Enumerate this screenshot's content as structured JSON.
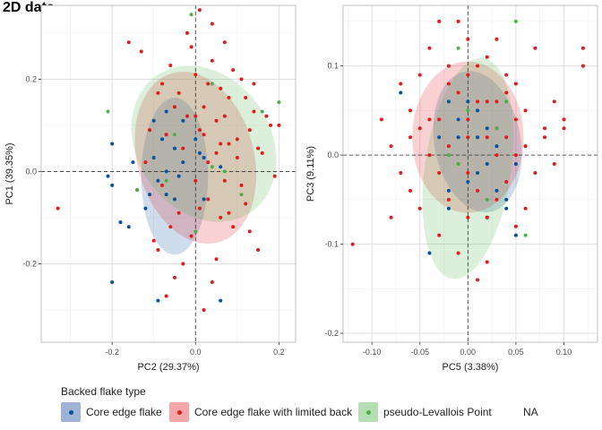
{
  "figure": {
    "title": "2D data",
    "legend": {
      "title": "Backed flake type",
      "position": "bottom",
      "items": [
        {
          "label": "Core edge flake",
          "color": "#08519c",
          "fill": "#9fb4d4"
        },
        {
          "label": "Core edge flake with limited back",
          "color": "#e31a1c",
          "fill": "#f4a6a8"
        },
        {
          "label": "pseudo-Levallois Point",
          "color": "#4daf4a",
          "fill": "#b6deb4"
        },
        {
          "label": "NA",
          "color": "",
          "fill": ""
        }
      ]
    }
  },
  "chart_data": [
    {
      "type": "scatter",
      "title": "",
      "xlabel": "PC2 (29.37%)",
      "ylabel": "PC1 (39.35%)",
      "xlim": [
        -0.37,
        0.24
      ],
      "ylim": [
        -0.37,
        0.36
      ],
      "x_ticks": [
        -0.2,
        0.0,
        0.2
      ],
      "x_tick_labels": [
        "-0.2",
        "0.0",
        "0.2"
      ],
      "y_ticks": [
        -0.2,
        0.0,
        0.2
      ],
      "y_tick_labels": [
        "-0.2",
        "0.0",
        "0.2"
      ],
      "grid": true,
      "reference_lines": {
        "x": 0,
        "y": 0
      },
      "ellipses": [
        {
          "group": 0,
          "cx": -0.05,
          "cy": -0.01,
          "rx": 0.08,
          "ry": 0.17,
          "angle": 0
        },
        {
          "group": 1,
          "cx": 0.0,
          "cy": 0.03,
          "rx": 0.14,
          "ry": 0.19,
          "angle": -15
        },
        {
          "group": 2,
          "cx": 0.02,
          "cy": 0.06,
          "rx": 0.16,
          "ry": 0.18,
          "angle": -35
        }
      ],
      "series": [
        {
          "name": "Core edge flake",
          "points": [
            [
              -0.2,
              -0.24
            ],
            [
              -0.09,
              -0.28
            ],
            [
              0.06,
              -0.28
            ],
            [
              -0.2,
              0.06
            ],
            [
              -0.21,
              -0.01
            ],
            [
              -0.07,
              0.13
            ],
            [
              -0.03,
              0.11
            ],
            [
              -0.1,
              0.03
            ],
            [
              -0.05,
              0.05
            ],
            [
              -0.15,
              0.02
            ],
            [
              -0.07,
              -0.05
            ],
            [
              -0.05,
              -0.06
            ],
            [
              -0.03,
              0.02
            ],
            [
              -0.12,
              -0.08
            ],
            [
              -0.2,
              -0.03
            ],
            [
              -0.16,
              -0.12
            ],
            [
              -0.09,
              -0.02
            ],
            [
              0.0,
              0.07
            ],
            [
              -0.07,
              0.0
            ],
            [
              -0.1,
              0.11
            ],
            [
              0.01,
              0.04
            ],
            [
              0.02,
              -0.06
            ],
            [
              -0.18,
              -0.11
            ],
            [
              -0.04,
              -0.01
            ],
            [
              0.02,
              0.03
            ],
            [
              -0.08,
              0.07
            ],
            [
              0.06,
              0.01
            ],
            [
              -0.11,
              -0.05
            ]
          ]
        },
        {
          "name": "Core edge flake with limited back",
          "points": [
            [
              -0.33,
              -0.08
            ],
            [
              -0.16,
              0.28
            ],
            [
              -0.13,
              0.26
            ],
            [
              -0.11,
              0.09
            ],
            [
              -0.09,
              0.17
            ],
            [
              -0.08,
              -0.03
            ],
            [
              -0.07,
              0.08
            ],
            [
              -0.06,
              0.23
            ],
            [
              -0.05,
              0.14
            ],
            [
              -0.04,
              -0.09
            ],
            [
              -0.03,
              0.05
            ],
            [
              -0.02,
              0.12
            ],
            [
              -0.01,
              -0.14
            ],
            [
              0.0,
              0.21
            ],
            [
              0.0,
              -0.02
            ],
            [
              0.01,
              0.09
            ],
            [
              0.02,
              0.14
            ],
            [
              0.03,
              -0.06
            ],
            [
              0.03,
              0.02
            ],
            [
              0.04,
              0.24
            ],
            [
              0.05,
              0.11
            ],
            [
              0.05,
              -0.19
            ],
            [
              0.06,
              0.06
            ],
            [
              0.07,
              -0.02
            ],
            [
              0.08,
              0.16
            ],
            [
              0.09,
              -0.12
            ],
            [
              0.1,
              0.03
            ],
            [
              0.11,
              0.2
            ],
            [
              0.12,
              -0.07
            ],
            [
              0.13,
              0.09
            ],
            [
              0.14,
              0.13
            ],
            [
              0.15,
              -0.17
            ],
            [
              0.16,
              0.04
            ],
            [
              0.18,
              0.1
            ],
            [
              -0.1,
              -0.15
            ],
            [
              -0.12,
              0.02
            ],
            [
              -0.05,
              -0.23
            ],
            [
              0.02,
              -0.3
            ],
            [
              0.04,
              -0.24
            ],
            [
              -0.02,
              0.3
            ],
            [
              0.01,
              0.35
            ],
            [
              0.06,
              0.18
            ],
            [
              0.07,
              0.28
            ],
            [
              -0.08,
              0.19
            ],
            [
              0.08,
              -0.09
            ],
            [
              0.1,
              0.07
            ],
            [
              0.12,
              0.16
            ],
            [
              0.17,
              0.12
            ],
            [
              -0.06,
              -0.12
            ],
            [
              0.0,
              0.12
            ],
            [
              0.03,
              0.19
            ],
            [
              -0.03,
              -0.2
            ],
            [
              0.05,
              0.04
            ],
            [
              0.09,
              0.22
            ],
            [
              0.11,
              -0.03
            ],
            [
              0.13,
              -0.13
            ],
            [
              0.14,
              0.19
            ],
            [
              -0.01,
              0.27
            ],
            [
              0.04,
              0.32
            ],
            [
              0.06,
              -0.1
            ],
            [
              -0.14,
              -0.04
            ],
            [
              0.15,
              0.05
            ],
            [
              0.19,
              -0.01
            ],
            [
              -0.09,
              -0.17
            ],
            [
              0.02,
              0.08
            ],
            [
              -0.04,
              0.17
            ],
            [
              0.07,
              0.12
            ],
            [
              0.01,
              -0.08
            ],
            [
              0.08,
              0.06
            ],
            [
              -0.07,
              -0.27
            ],
            [
              0.2,
              0.1
            ]
          ]
        },
        {
          "name": "pseudo-Levallois Point",
          "points": [
            [
              -0.21,
              0.13
            ],
            [
              -0.01,
              0.34
            ],
            [
              0.04,
              0.19
            ],
            [
              0.16,
              0.13
            ],
            [
              0.2,
              0.15
            ],
            [
              0.07,
              0.0
            ],
            [
              -0.05,
              0.08
            ],
            [
              0.11,
              -0.05
            ],
            [
              -0.07,
              -0.02
            ],
            [
              0.0,
              -0.13
            ],
            [
              0.04,
              0.01
            ],
            [
              -0.14,
              -0.04
            ]
          ]
        }
      ]
    },
    {
      "type": "scatter",
      "title": "",
      "xlabel": "PC5 (3.38%)",
      "ylabel": "PC3 (9.11%)",
      "xlim": [
        -0.13,
        0.135
      ],
      "ylim": [
        -0.21,
        0.168
      ],
      "x_ticks": [
        -0.1,
        -0.05,
        0.0,
        0.05,
        0.1
      ],
      "x_tick_labels": [
        "-0.10",
        "-0.05",
        "0.00",
        "0.05",
        "0.10"
      ],
      "y_ticks": [
        -0.2,
        -0.1,
        0.0,
        0.1
      ],
      "y_tick_labels": [
        "-0.2",
        "-0.1",
        "0.0",
        "0.1"
      ],
      "grid": true,
      "reference_lines": {
        "x": 0,
        "y": 0
      },
      "ellipses": [
        {
          "group": 0,
          "cx": 0.01,
          "cy": 0.015,
          "rx": 0.045,
          "ry": 0.08,
          "angle": -10
        },
        {
          "group": 1,
          "cx": 0.0,
          "cy": 0.02,
          "rx": 0.058,
          "ry": 0.085,
          "angle": 0
        },
        {
          "group": 2,
          "cx": 0.0,
          "cy": -0.015,
          "rx": 0.045,
          "ry": 0.125,
          "angle": 8
        }
      ],
      "series": [
        {
          "name": "Core edge flake",
          "points": [
            [
              -0.07,
              0.07
            ],
            [
              -0.04,
              -0.11
            ],
            [
              -0.02,
              0.06
            ],
            [
              -0.01,
              0.02
            ],
            [
              0.0,
              -0.03
            ],
            [
              0.01,
              0.05
            ],
            [
              0.02,
              -0.07
            ],
            [
              0.03,
              0.01
            ],
            [
              0.05,
              -0.01
            ],
            [
              -0.02,
              -0.04
            ],
            [
              -0.03,
              0.02
            ],
            [
              0.04,
              -0.05
            ],
            [
              0.01,
              -0.02
            ],
            [
              -0.01,
              0.04
            ],
            [
              0.02,
              0.03
            ],
            [
              0.03,
              -0.04
            ],
            [
              0.0,
              0.06
            ],
            [
              0.04,
              -0.06
            ],
            [
              -0.02,
              -0.06
            ],
            [
              0.05,
              -0.09
            ],
            [
              0.02,
              -0.01
            ],
            [
              0.01,
              0.02
            ]
          ]
        },
        {
          "name": "Core edge flake with limited back",
          "points": [
            [
              -0.12,
              -0.1
            ],
            [
              -0.09,
              0.04
            ],
            [
              -0.08,
              -0.07
            ],
            [
              -0.08,
              0.01
            ],
            [
              -0.07,
              -0.02
            ],
            [
              -0.06,
              0.05
            ],
            [
              -0.06,
              -0.04
            ],
            [
              -0.05,
              0.03
            ],
            [
              -0.05,
              -0.06
            ],
            [
              -0.04,
              0.12
            ],
            [
              -0.04,
              0.0
            ],
            [
              -0.03,
              0.15
            ],
            [
              -0.03,
              -0.02
            ],
            [
              -0.02,
              0.08
            ],
            [
              -0.02,
              -0.05
            ],
            [
              -0.01,
              0.15
            ],
            [
              -0.01,
              -0.01
            ],
            [
              0.0,
              0.02
            ],
            [
              0.0,
              -0.07
            ],
            [
              0.01,
              0.1
            ],
            [
              0.01,
              -0.04
            ],
            [
              0.02,
              0.06
            ],
            [
              0.02,
              -0.12
            ],
            [
              0.03,
              0.13
            ],
            [
              0.03,
              0.0
            ],
            [
              0.04,
              0.07
            ],
            [
              0.04,
              -0.03
            ],
            [
              0.05,
              0.04
            ],
            [
              0.05,
              -0.08
            ],
            [
              0.06,
              0.01
            ],
            [
              0.07,
              0.12
            ],
            [
              0.08,
              0.02
            ],
            [
              0.09,
              0.06
            ],
            [
              0.1,
              0.04
            ],
            [
              0.12,
              0.12
            ],
            [
              0.12,
              0.1
            ],
            [
              -0.07,
              0.08
            ],
            [
              -0.03,
              -0.09
            ],
            [
              0.0,
              0.09
            ],
            [
              0.02,
              0.02
            ],
            [
              0.01,
              -0.14
            ],
            [
              -0.01,
              -0.11
            ],
            [
              0.03,
              0.06
            ],
            [
              -0.04,
              0.04
            ],
            [
              0.06,
              -0.06
            ],
            [
              0.02,
              0.11
            ],
            [
              0.0,
              0.13
            ],
            [
              -0.02,
              0.01
            ],
            [
              0.04,
              0.09
            ],
            [
              0.08,
              0.03
            ],
            [
              -0.05,
              0.09
            ],
            [
              0.05,
              0.08
            ],
            [
              -0.01,
              0.07
            ],
            [
              0.03,
              -0.05
            ],
            [
              0.07,
              -0.02
            ],
            [
              0.06,
              0.05
            ],
            [
              -0.03,
              0.04
            ],
            [
              0.0,
              -0.02
            ],
            [
              0.01,
              0.06
            ],
            [
              0.1,
              0.03
            ],
            [
              -0.06,
              0.02
            ],
            [
              0.02,
              -0.07
            ],
            [
              0.04,
              0.02
            ],
            [
              -0.02,
              0.1
            ],
            [
              0.09,
              -0.01
            ],
            [
              0.03,
              0.03
            ],
            [
              0.05,
              0.0
            ],
            [
              0.0,
              0.04
            ]
          ]
        },
        {
          "name": "pseudo-Levallois Point",
          "points": [
            [
              0.05,
              0.15
            ],
            [
              -0.01,
              0.12
            ],
            [
              0.0,
              0.05
            ],
            [
              -0.01,
              -0.01
            ],
            [
              0.03,
              0.03
            ],
            [
              0.06,
              -0.09
            ],
            [
              0.02,
              -0.05
            ],
            [
              -0.02,
              0.0
            ],
            [
              0.04,
              0.06
            ]
          ]
        }
      ]
    }
  ]
}
